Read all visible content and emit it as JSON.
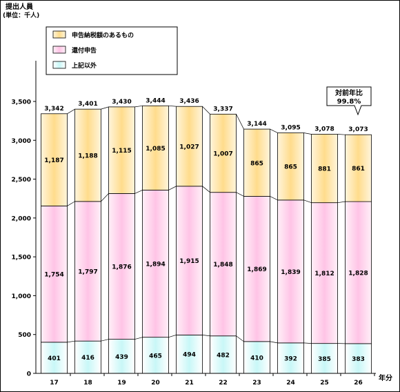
{
  "chart_data": {
    "type": "bar",
    "stacked": true,
    "ylabel": "提出人員",
    "unit_note": "(単位：千人)",
    "xlabel": "年分",
    "categories": [
      "17",
      "18",
      "19",
      "20",
      "21",
      "22",
      "23",
      "24",
      "25",
      "26"
    ],
    "ylim": [
      0,
      3500
    ],
    "yticks": [
      "0",
      "500",
      "1,000",
      "1,500",
      "2,000",
      "2,500",
      "3,000",
      "3,500"
    ],
    "ytick_values": [
      0,
      500,
      1000,
      1500,
      2000,
      2500,
      3000,
      3500
    ],
    "grid": false,
    "legend_position": "top-left",
    "series": [
      {
        "name": "上記以外",
        "color": "#d6fbfb",
        "edge": "#4fd0d0",
        "values": [
          401,
          416,
          439,
          465,
          494,
          482,
          410,
          392,
          385,
          383
        ],
        "labels": [
          "401",
          "416",
          "439",
          "465",
          "494",
          "482",
          "410",
          "392",
          "385",
          "383"
        ]
      },
      {
        "name": "還付申告",
        "color": "#ffd0ec",
        "edge": "#e060b0",
        "values": [
          1754,
          1797,
          1876,
          1894,
          1915,
          1848,
          1869,
          1839,
          1812,
          1828
        ],
        "labels": [
          "1,754",
          "1,797",
          "1,876",
          "1,894",
          "1,915",
          "1,848",
          "1,869",
          "1,839",
          "1,812",
          "1,828"
        ]
      },
      {
        "name": "申告納税額のあるもの",
        "color": "#ffe6a6",
        "edge": "#e8a020",
        "values": [
          1187,
          1188,
          1115,
          1085,
          1027,
          1007,
          865,
          865,
          881,
          861
        ],
        "labels": [
          "1,187",
          "1,188",
          "1,115",
          "1,085",
          "1,027",
          "1,007",
          "865",
          "865",
          "881",
          "861"
        ]
      }
    ],
    "totals": [
      3342,
      3401,
      3430,
      3444,
      3436,
      3337,
      3144,
      3095,
      3078,
      3073
    ],
    "total_labels": [
      "3,342",
      "3,401",
      "3,430",
      "3,444",
      "3,436",
      "3,337",
      "3,144",
      "3,095",
      "3,078",
      "3,073"
    ],
    "annotation": {
      "line1": "対前年比",
      "line2": "99.8%"
    }
  }
}
